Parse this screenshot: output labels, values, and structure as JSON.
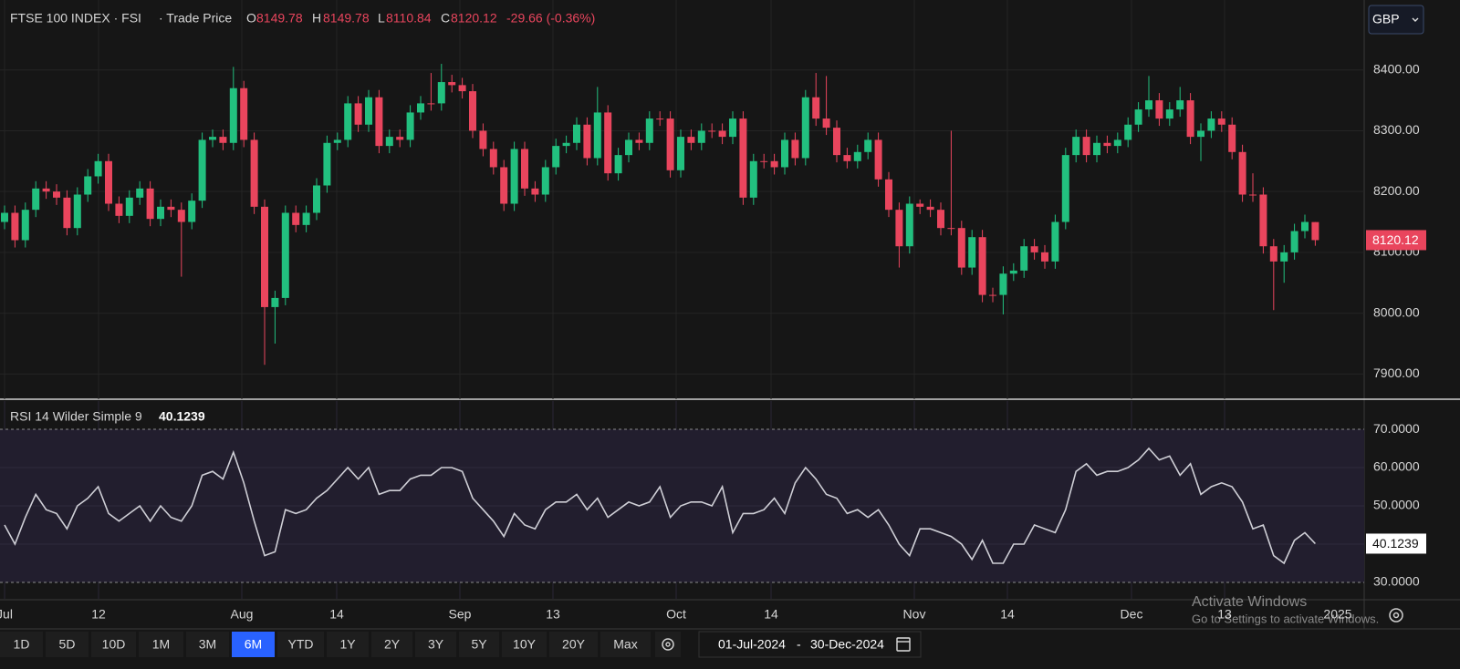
{
  "header": {
    "title": "FTSE 100 INDEX · FSI",
    "price_type": "· Trade Price",
    "o_label": "O",
    "h_label": "H",
    "l_label": "L",
    "c_label": "C",
    "change": "-29.66 (-0.36%)",
    "currency": "GBP"
  },
  "chart_data": [
    {
      "type": "candlestick",
      "up_color": "#22c07f",
      "down_color": "#e9455d",
      "open": [
        8150,
        8165,
        8120,
        8170,
        8205,
        8200,
        8190,
        8140,
        8195,
        8225,
        8250,
        8180,
        8160,
        8190,
        8205,
        8155,
        8175,
        8170,
        8150,
        8185,
        8285,
        8290,
        8280,
        8370,
        8285,
        8175,
        8010,
        8025,
        8165,
        8145,
        8165,
        8210,
        8280,
        8285,
        8345,
        8310,
        8355,
        8275,
        8290,
        8285,
        8330,
        8345,
        8345,
        8380,
        8375,
        8365,
        8300,
        8270,
        8240,
        8180,
        8270,
        8205,
        8195,
        8240,
        8275,
        8280,
        8310,
        8255,
        8330,
        8230,
        8260,
        8285,
        8280,
        8320,
        8320,
        8235,
        8290,
        8280,
        8300,
        8300,
        8290,
        8320,
        8190,
        8250,
        8250,
        8240,
        8285,
        8255,
        8355,
        8320,
        8305,
        8260,
        8250,
        8265,
        8285,
        8220,
        8170,
        8110,
        8180,
        8175,
        8170,
        8140,
        8140,
        8075,
        8125,
        8030,
        8030,
        8065,
        8070,
        8110,
        8100,
        8085,
        8150,
        8260,
        8290,
        8260,
        8280,
        8275,
        8285,
        8310,
        8335,
        8350,
        8320,
        8335,
        8350,
        8290,
        8300,
        8320,
        8310,
        8265,
        8195,
        8195,
        8110,
        8085,
        8100,
        8135,
        8149.78
      ],
      "high": [
        8177,
        8177,
        8182,
        8217,
        8217,
        8212,
        8202,
        8207,
        8237,
        8262,
        8262,
        8192,
        8202,
        8217,
        8217,
        8187,
        8187,
        8182,
        8197,
        8297,
        8302,
        8302,
        8405,
        8382,
        8297,
        8187,
        8037,
        8177,
        8177,
        8177,
        8222,
        8292,
        8297,
        8357,
        8357,
        8367,
        8367,
        8302,
        8302,
        8342,
        8357,
        8395,
        8410,
        8392,
        8387,
        8377,
        8312,
        8282,
        8252,
        8282,
        8282,
        8217,
        8252,
        8287,
        8292,
        8322,
        8322,
        8372,
        8342,
        8272,
        8297,
        8297,
        8332,
        8332,
        8332,
        8302,
        8302,
        8312,
        8312,
        8312,
        8332,
        8332,
        8262,
        8262,
        8262,
        8297,
        8297,
        8367,
        8395,
        8390,
        8317,
        8272,
        8277,
        8297,
        8297,
        8232,
        8182,
        8192,
        8187,
        8187,
        8182,
        8300,
        8152,
        8137,
        8137,
        8042,
        8077,
        8082,
        8122,
        8122,
        8112,
        8162,
        8272,
        8302,
        8302,
        8292,
        8292,
        8297,
        8322,
        8347,
        8390,
        8362,
        8347,
        8372,
        8362,
        8312,
        8332,
        8332,
        8322,
        8277,
        8230,
        8207,
        8122,
        8112,
        8147,
        8162,
        8149.78
      ],
      "low": [
        8138,
        8108,
        8108,
        8158,
        8188,
        8178,
        8128,
        8128,
        8183,
        8213,
        8168,
        8148,
        8148,
        8178,
        8143,
        8143,
        8158,
        8060,
        8138,
        8173,
        8273,
        8268,
        8268,
        8273,
        8163,
        7915,
        7950,
        8013,
        8133,
        8133,
        8153,
        8198,
        8268,
        8273,
        8298,
        8298,
        8263,
        8263,
        8273,
        8273,
        8318,
        8333,
        8333,
        8363,
        8353,
        8288,
        8258,
        8228,
        8168,
        8168,
        8193,
        8183,
        8183,
        8228,
        8263,
        8268,
        8243,
        8243,
        8218,
        8218,
        8248,
        8268,
        8268,
        8308,
        8223,
        8223,
        8268,
        8268,
        8288,
        8278,
        8278,
        8178,
        8178,
        8238,
        8228,
        8228,
        8243,
        8243,
        8308,
        8293,
        8248,
        8238,
        8238,
        8253,
        8208,
        8158,
        8075,
        8098,
        8163,
        8158,
        8128,
        8128,
        8063,
        8063,
        8018,
        8018,
        7998,
        8053,
        8058,
        8088,
        8073,
        8073,
        8138,
        8248,
        8248,
        8248,
        8263,
        8263,
        8273,
        8298,
        8323,
        8308,
        8308,
        8323,
        8278,
        8250,
        8288,
        8298,
        8253,
        8183,
        8183,
        8098,
        8005,
        8050,
        8088,
        8123,
        8110.84
      ],
      "close": [
        8165,
        8120,
        8170,
        8205,
        8200,
        8190,
        8140,
        8195,
        8225,
        8250,
        8180,
        8160,
        8190,
        8205,
        8155,
        8175,
        8170,
        8150,
        8185,
        8285,
        8290,
        8280,
        8370,
        8285,
        8175,
        8010,
        8025,
        8165,
        8145,
        8165,
        8210,
        8280,
        8285,
        8345,
        8310,
        8355,
        8275,
        8290,
        8285,
        8330,
        8345,
        8345,
        8380,
        8375,
        8365,
        8300,
        8270,
        8240,
        8180,
        8270,
        8205,
        8195,
        8240,
        8275,
        8280,
        8310,
        8255,
        8330,
        8230,
        8260,
        8285,
        8280,
        8320,
        8320,
        8235,
        8290,
        8280,
        8300,
        8300,
        8290,
        8320,
        8190,
        8250,
        8250,
        8240,
        8285,
        8255,
        8355,
        8320,
        8305,
        8260,
        8250,
        8265,
        8285,
        8220,
        8170,
        8110,
        8180,
        8175,
        8170,
        8140,
        8140,
        8075,
        8125,
        8030,
        8030,
        8065,
        8070,
        8110,
        8100,
        8085,
        8150,
        8260,
        8290,
        8260,
        8280,
        8275,
        8285,
        8310,
        8335,
        8350,
        8320,
        8335,
        8350,
        8290,
        8300,
        8320,
        8310,
        8265,
        8195,
        8195,
        8110,
        8085,
        8100,
        8135,
        8150,
        8120.12
      ],
      "ylim": [
        7860,
        8500
      ],
      "yticks": [
        {
          "value": 7900,
          "label": "7900.00"
        },
        {
          "value": 8000,
          "label": "8000.00"
        },
        {
          "value": 8100,
          "label": "8100.00"
        },
        {
          "value": 8200,
          "label": "8200.00"
        },
        {
          "value": 8300,
          "label": "8300.00"
        },
        {
          "value": 8400,
          "label": "8400.00"
        }
      ],
      "xtick_labels": [
        "Jul",
        "12",
        "Aug",
        "14",
        "Sep",
        "13",
        "Oct",
        "14",
        "Nov",
        "14",
        "Dec",
        "13",
        "2025"
      ],
      "grid": true
    },
    {
      "type": "line",
      "title": "RSI 14 Wilder Simple 9",
      "color": "#cfcfd6",
      "band_color": "#221e2e",
      "values": [
        45,
        40,
        47,
        53,
        49,
        48,
        44,
        50,
        52,
        55,
        48,
        46,
        48,
        50,
        46,
        50,
        47,
        46,
        50,
        58,
        59,
        57,
        64,
        56,
        46,
        37,
        38,
        49,
        48,
        49,
        52,
        54,
        57,
        60,
        57,
        60,
        53,
        54,
        54,
        57,
        58,
        58,
        60,
        60,
        59,
        52,
        49,
        46,
        42,
        48,
        45,
        44,
        49,
        51,
        51,
        53,
        49,
        52,
        47,
        49,
        51,
        50,
        51,
        55,
        47,
        50,
        51,
        51,
        50,
        55,
        43,
        48,
        48,
        49,
        52,
        48,
        56,
        60,
        57,
        53,
        52,
        48,
        49,
        47,
        49,
        45,
        40,
        37,
        44,
        44,
        43,
        42,
        40,
        36,
        41,
        35,
        35,
        40,
        40,
        45,
        44,
        43,
        49,
        59,
        61,
        58,
        59,
        59,
        60,
        62,
        65,
        62,
        63,
        58,
        61,
        53,
        55,
        56,
        55,
        51,
        44,
        45,
        37,
        35,
        41,
        43,
        40.1239
      ],
      "ylim": [
        25.7,
        77.4
      ],
      "yticks": [
        {
          "value": 30,
          "label": "30.0000"
        },
        {
          "value": 40,
          "label": "40.0000"
        },
        {
          "value": 50,
          "label": "50.0000"
        },
        {
          "value": 60,
          "label": "60.0000"
        },
        {
          "value": 70,
          "label": "70.0000"
        }
      ]
    }
  ],
  "toolbar": {
    "ranges": [
      "1D",
      "5D",
      "10D",
      "1M",
      "3M",
      "6M",
      "YTD",
      "1Y",
      "2Y",
      "3Y",
      "5Y",
      "10Y",
      "20Y",
      "Max"
    ],
    "active": "6M",
    "date_from": "01-Jul-2024",
    "date_sep": "-",
    "date_to": "30-Dec-2024"
  },
  "watermark": {
    "title": "Activate Windows",
    "text": "Go to Settings to activate Windows."
  }
}
